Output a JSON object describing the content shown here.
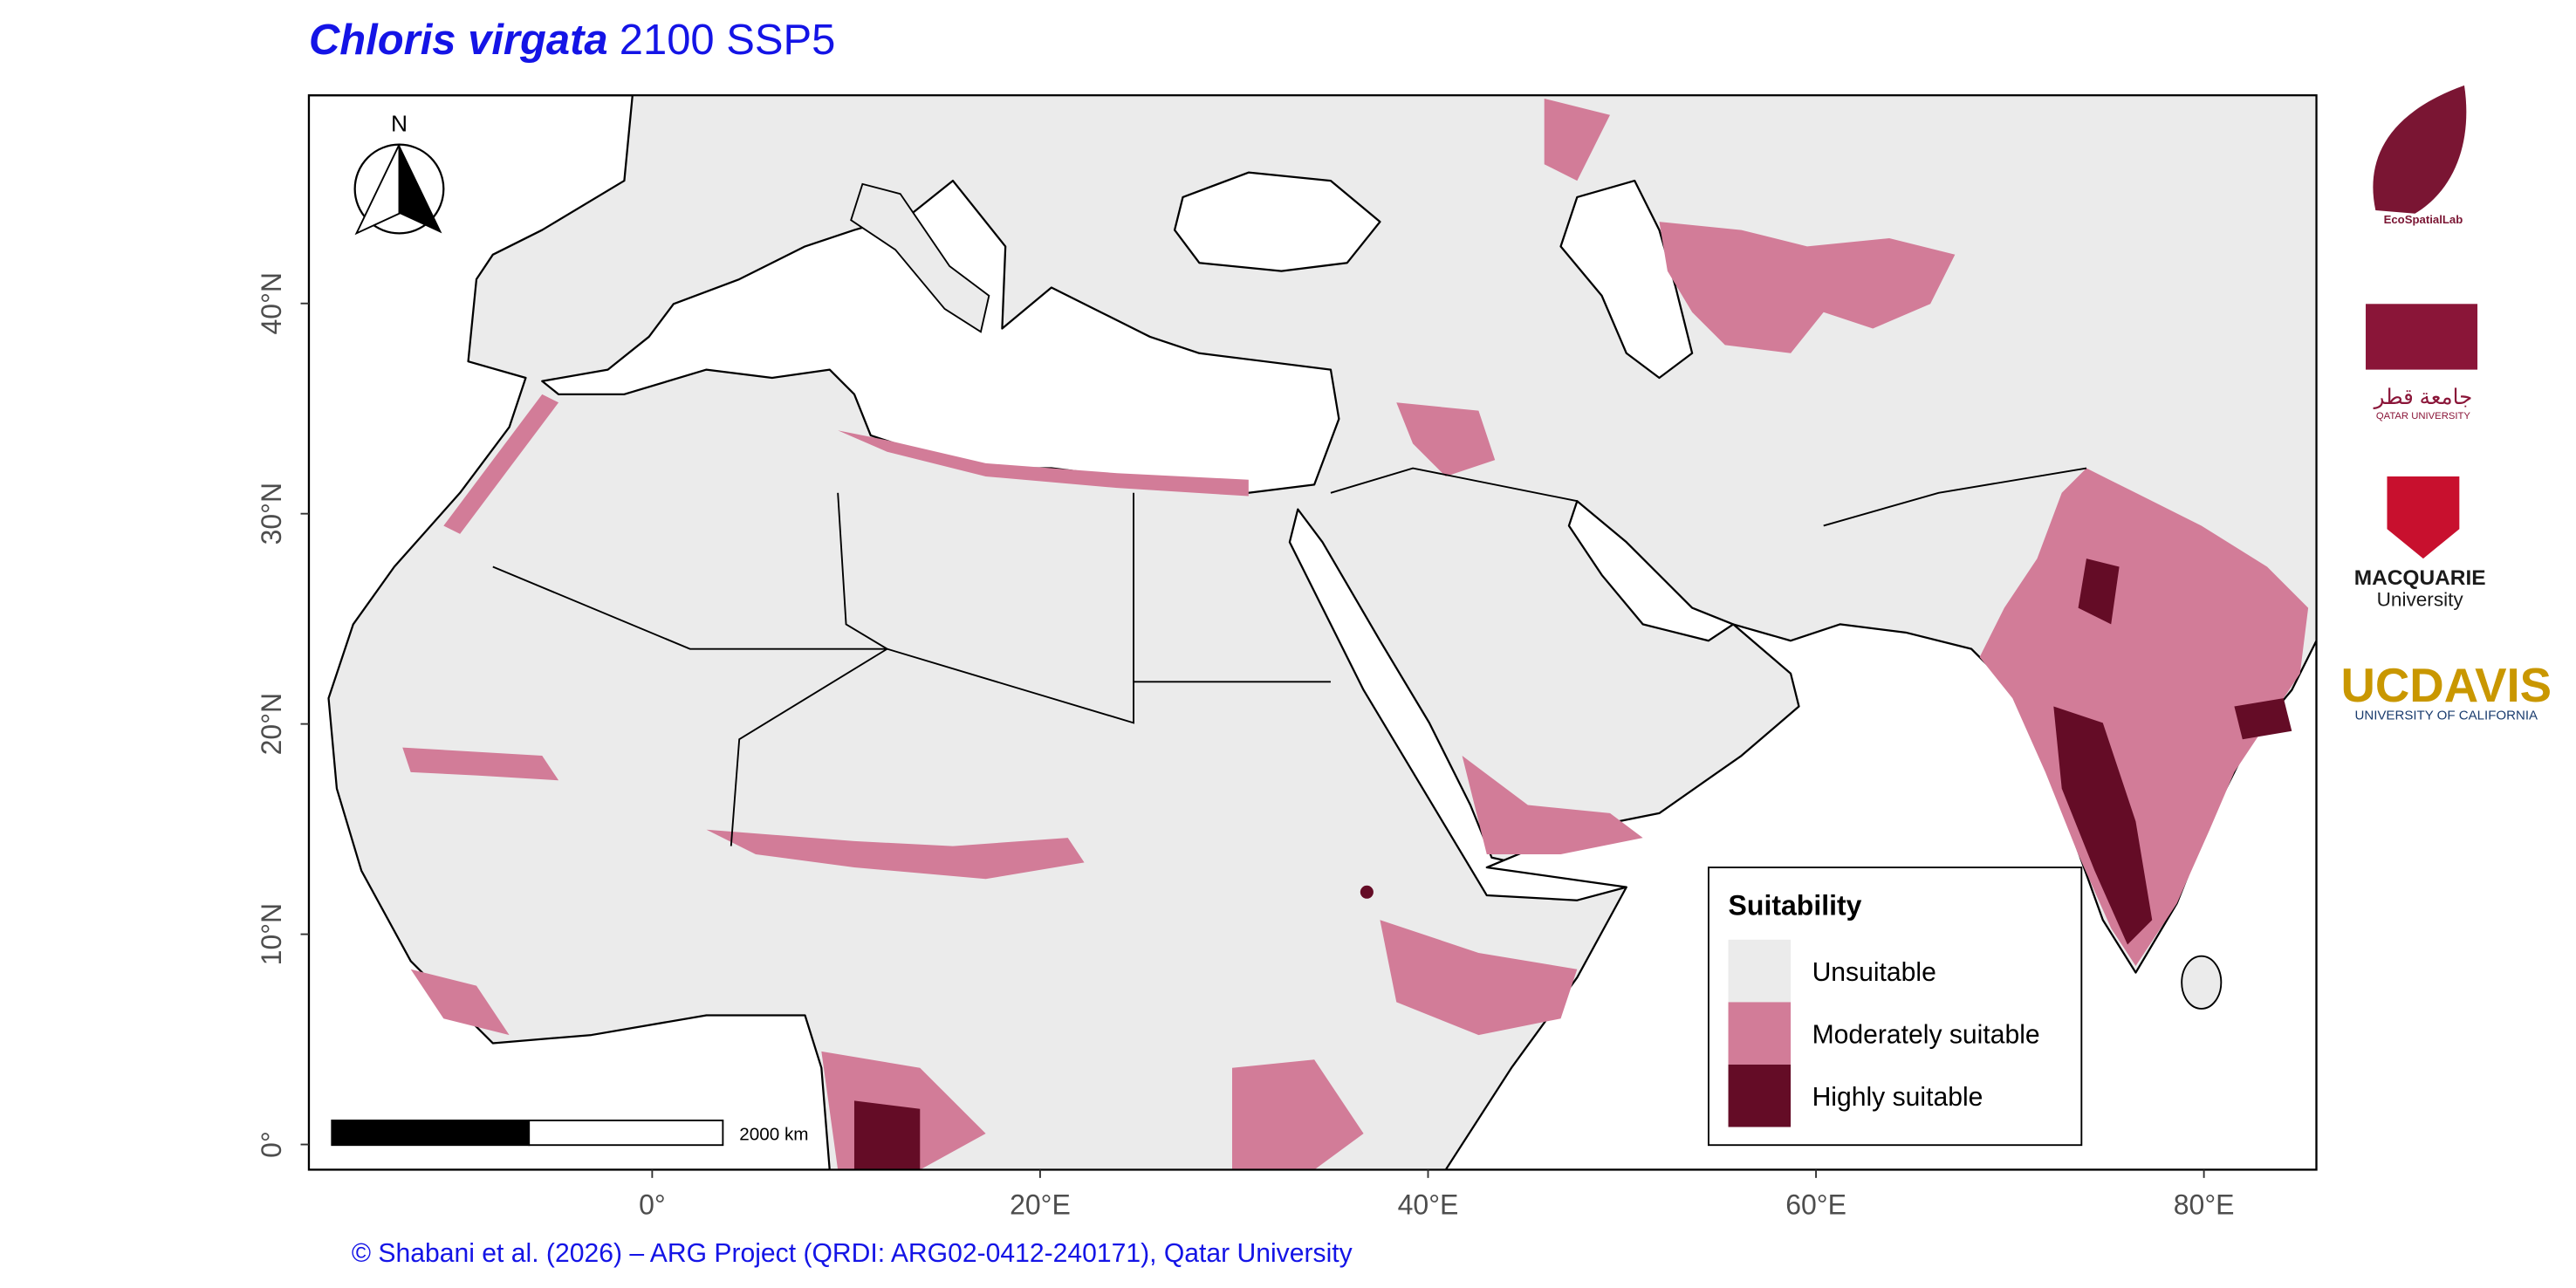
{
  "map": {
    "title": {
      "species": "Chloris virgata",
      "scenario": "2100 SSP5"
    },
    "xlim": [
      -17.7,
      85.8
    ],
    "ylim": [
      -1.2,
      49.9
    ],
    "xticks": [
      {
        "value": 0,
        "label": "0°"
      },
      {
        "value": 20,
        "label": "20°E"
      },
      {
        "value": 40,
        "label": "40°E"
      },
      {
        "value": 60,
        "label": "60°E"
      },
      {
        "value": 80,
        "label": "80°E"
      }
    ],
    "yticks": [
      {
        "value": 0,
        "label": "0°"
      },
      {
        "value": 10,
        "label": "10°N"
      },
      {
        "value": 20,
        "label": "20°N"
      },
      {
        "value": 30,
        "label": "30°N"
      },
      {
        "value": 40,
        "label": "40°N"
      }
    ],
    "legend": {
      "title": "Suitability",
      "items": [
        {
          "label": "Unsuitable",
          "color": "#ebebeb"
        },
        {
          "label": "Moderately suitable",
          "color": "#d27c98"
        },
        {
          "label": "Highly suitable",
          "color": "#640c26"
        }
      ]
    },
    "north_arrow": "N",
    "scale_bar": "2000 km",
    "caption": "© Shabani et al. (2026) – ARG Project (QRDI: ARG02-0412-240171), Qatar University",
    "logos": [
      "EcoSpatialLab",
      "جامعة قطر",
      "QATAR UNIVERSITY",
      "MACQUARIE",
      "University",
      "UCDAVIS",
      "UNIVERSITY OF CALIFORNIA"
    ]
  }
}
